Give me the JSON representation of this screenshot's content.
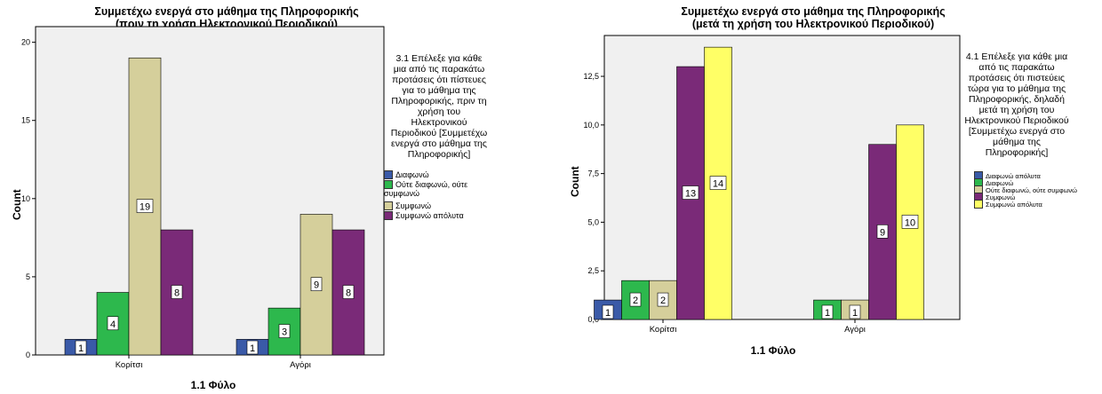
{
  "charts": [
    {
      "title": "Συμμετέχω ενεργά στο μάθημα της Πληροφορικής\n(πριν τη χρήση Ηλεκτρονικού Περιοδικού)",
      "legend_title": "3.1 Επέλεξε για κάθε\nμια από τις παρακάτω\nπροτάσεις ότι πίστευες\nγια το μάθημα της\nΠληροφορικής, πριν τη\nχρήση του\nΗλεκτρονικού\nΠεριοδικού [Συμμετέχω\nενεργά στο μάθημα της\nΠληροφορικής]",
      "xlabel": "1.1 Φύλο",
      "ylabel": "Count"
    },
    {
      "title": "Συμμετέχω ενεργά στο μάθημα της Πληροφορικής\n(μετά τη χρήση του Ηλεκτρονικού Περιοδικού)",
      "legend_title": "4.1 Επέλεξε για κάθε μια\nαπό τις παρακάτω\nπροτάσεις ότι πιστεύεις\nτώρα για το μάθημα της\nΠληροφορικής, δηλαδή\nμετά τη χρήση του\nΗλεκτρονικού Περιοδικού\n[Συμμετέχω ενεργά στο\nμάθημα της\nΠληροφορικής]",
      "xlabel": "1.1 Φύλο",
      "ylabel": "Count"
    }
  ],
  "chart_data": [
    {
      "type": "bar",
      "title": "Συμμετέχω ενεργά στο μάθημα της Πληροφορικής (πριν τη χρήση Ηλεκτρονικού Περιοδικού)",
      "xlabel": "1.1 Φύλο",
      "ylabel": "Count",
      "categories": [
        "Κορίτσι",
        "Αγόρι"
      ],
      "ylim": [
        0,
        21
      ],
      "yticks": [
        0,
        5,
        10,
        15,
        20
      ],
      "ytick_labels": [
        "0",
        "5",
        "10",
        "15",
        "20"
      ],
      "grid": false,
      "legend_position": "right",
      "series": [
        {
          "name": "Διαφωνώ",
          "color": "#3a5aa8",
          "values": [
            1,
            1
          ]
        },
        {
          "name": "Ούτε διαφωνώ, ούτε συμφωνώ",
          "color": "#2db84d",
          "values": [
            4,
            3
          ]
        },
        {
          "name": "Συμφωνώ",
          "color": "#d5cf9b",
          "values": [
            19,
            9
          ]
        },
        {
          "name": "Συμφωνώ απόλυτα",
          "color": "#7a2a78",
          "values": [
            8,
            8
          ]
        }
      ]
    },
    {
      "type": "bar",
      "title": "Συμμετέχω ενεργά στο μάθημα της Πληροφορικής (μετά τη χρήση του Ηλεκτρονικού Περιοδικού)",
      "xlabel": "1.1 Φύλο",
      "ylabel": "Count",
      "categories": [
        "Κορίτσι",
        "Αγόρι"
      ],
      "ylim": [
        0,
        14.6
      ],
      "yticks": [
        0,
        2.5,
        5,
        7.5,
        10,
        12.5
      ],
      "ytick_labels": [
        "0,0",
        "2,5",
        "5,0",
        "7,5",
        "10,0",
        "12,5"
      ],
      "grid": false,
      "legend_position": "right",
      "series": [
        {
          "name": "Διαφωνώ απόλυτα",
          "color": "#3a5aa8",
          "values": [
            1,
            null
          ]
        },
        {
          "name": "Διαφωνώ",
          "color": "#2db84d",
          "values": [
            2,
            1
          ]
        },
        {
          "name": "Ούτε διαφωνώ, ούτε συμφωνώ",
          "color": "#d5cf9b",
          "values": [
            2,
            1
          ]
        },
        {
          "name": "Συμφωνώ",
          "color": "#7a2a78",
          "values": [
            13,
            9
          ]
        },
        {
          "name": "Συμφωνώ απόλυτα",
          "color": "#ffff66",
          "values": [
            14,
            10
          ]
        }
      ]
    }
  ]
}
